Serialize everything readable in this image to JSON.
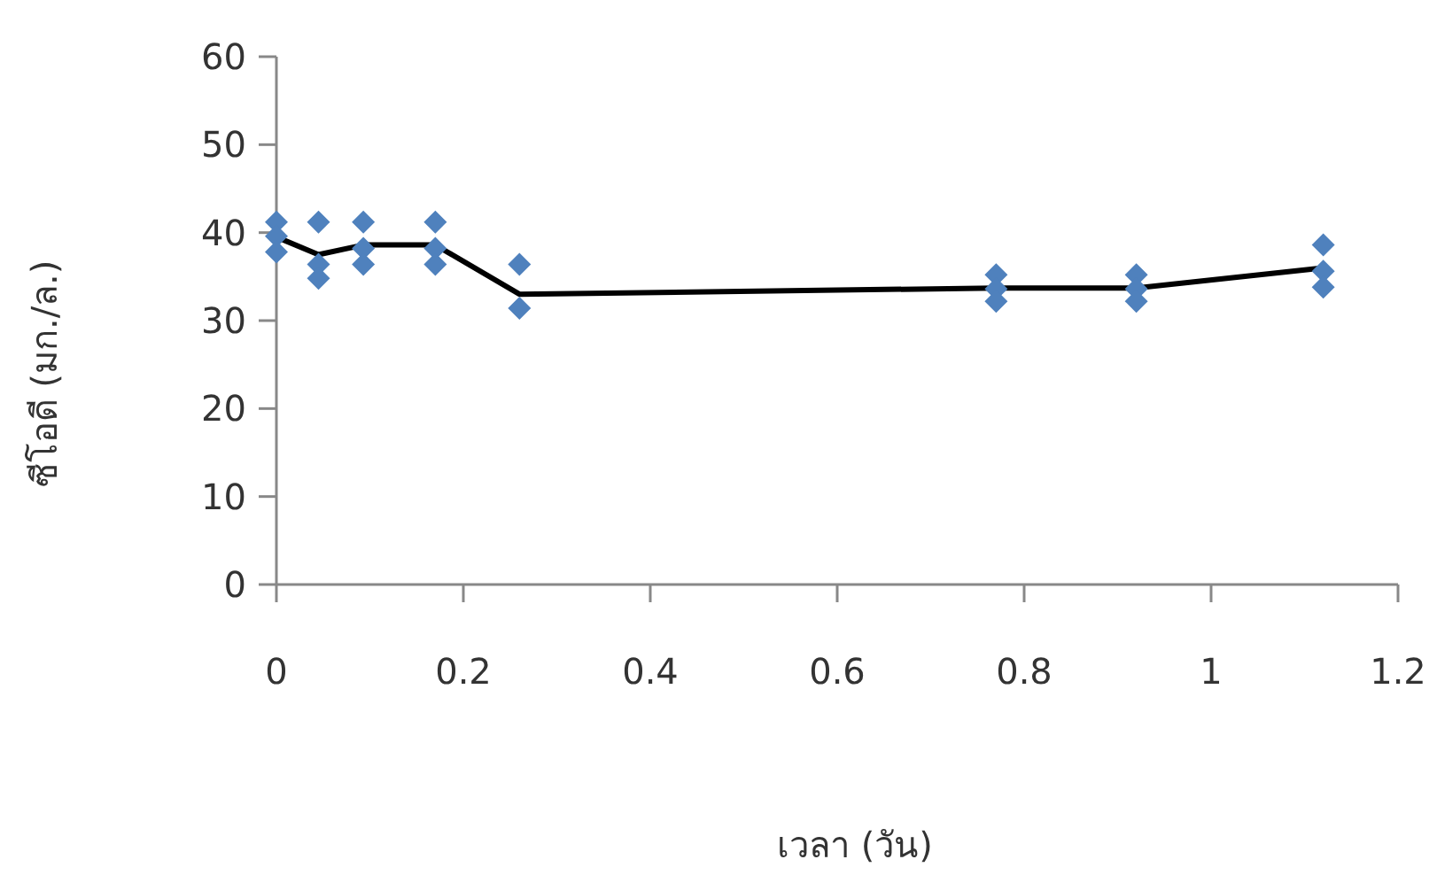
{
  "chart_data": {
    "type": "scatter",
    "xlabel": "เวลา (วัน)",
    "ylabel": "ซีโอดี (มก./ล.)",
    "xlim": [
      0,
      1.2
    ],
    "ylim": [
      0,
      60
    ],
    "xticks": [
      0,
      0.2,
      0.4,
      0.6,
      0.8,
      1,
      1.2
    ],
    "yticks": [
      0,
      10,
      20,
      30,
      40,
      50,
      60
    ],
    "series": [
      {
        "marker": "diamond",
        "color": "#4f81bd",
        "x": [
          0,
          0,
          0,
          0.045,
          0.045,
          0.045,
          0.093,
          0.093,
          0.093,
          0.17,
          0.17,
          0.17,
          0.26,
          0.26,
          0.77,
          0.77,
          0.77,
          0.92,
          0.92,
          0.92,
          1.12,
          1.12,
          1.12
        ],
        "values": [
          41.2,
          39.6,
          37.8,
          41.2,
          36.4,
          34.8,
          41.2,
          38.2,
          36.4,
          41.2,
          38.2,
          36.4,
          36.4,
          31.4,
          35.2,
          33.6,
          32.2,
          35.2,
          33.6,
          32.2,
          38.6,
          35.6,
          33.8
        ]
      },
      {
        "type": "line",
        "marker": "none",
        "color": "#000000",
        "x": [
          0,
          0.045,
          0.093,
          0.17,
          0.26,
          0.77,
          0.92,
          1.12
        ],
        "values": [
          39.5,
          37.5,
          38.6,
          38.6,
          33,
          33.7,
          33.7,
          36
        ]
      }
    ]
  }
}
